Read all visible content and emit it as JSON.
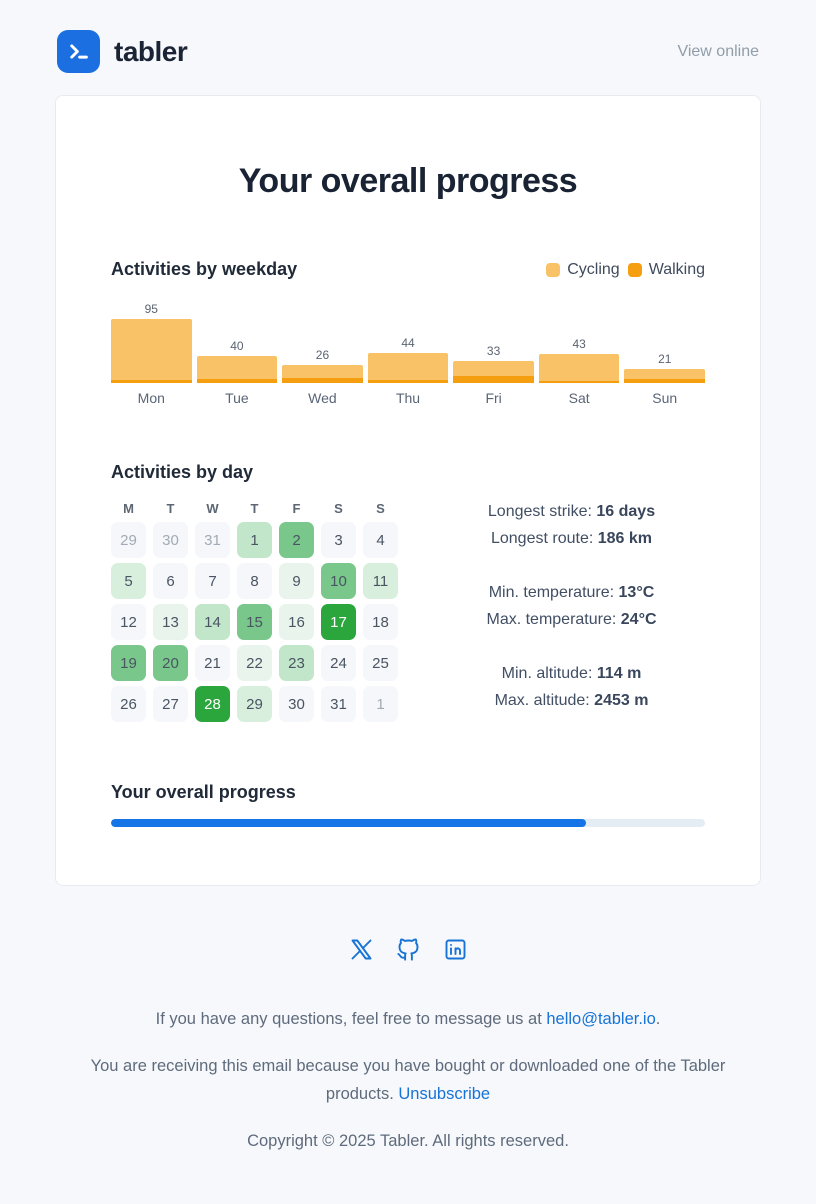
{
  "page": {
    "background": "#f6f8fb",
    "accent_blue": "#1b6fe0"
  },
  "header": {
    "brand": "tabler",
    "view_online": "View online"
  },
  "card": {
    "title": "Your overall progress"
  },
  "weekday_section": {
    "heading": "Activities by weekday",
    "legend": [
      {
        "label": "Cycling",
        "color": "#f9c266"
      },
      {
        "label": "Walking",
        "color": "#f59f10"
      }
    ]
  },
  "chart_data": {
    "type": "bar",
    "stacked": true,
    "title": "Activities by weekday",
    "xlabel": "",
    "ylabel": "",
    "categories": [
      "Mon",
      "Tue",
      "Wed",
      "Thu",
      "Fri",
      "Sat",
      "Sun"
    ],
    "totals": [
      95,
      40,
      26,
      44,
      33,
      43,
      21
    ],
    "series": [
      {
        "name": "Cycling",
        "color": "#f9c266",
        "values": [
          91,
          34,
          19,
          40,
          23,
          40,
          15
        ]
      },
      {
        "name": "Walking",
        "color": "#f59f10",
        "values": [
          4,
          6,
          7,
          4,
          10,
          3,
          6
        ]
      }
    ],
    "value_labels": true,
    "ylim": [
      0,
      95
    ],
    "grid": false,
    "legend_position": "top-right"
  },
  "day_section": {
    "heading": "Activities by day",
    "weekday_headers": [
      "M",
      "T",
      "W",
      "T",
      "F",
      "S",
      "S"
    ],
    "level_colors": [
      "#f5f7fa",
      "#e9f5ec",
      "#d9efde",
      "#c1e6c9",
      "#79c78b",
      "#2aa63d"
    ],
    "weeks": [
      [
        {
          "day": 29,
          "level": 0,
          "muted": true
        },
        {
          "day": 30,
          "level": 0,
          "muted": true
        },
        {
          "day": 31,
          "level": 0,
          "muted": true
        },
        {
          "day": 1,
          "level": 3
        },
        {
          "day": 2,
          "level": 4
        },
        {
          "day": 3,
          "level": 0
        },
        {
          "day": 4,
          "level": 0
        }
      ],
      [
        {
          "day": 5,
          "level": 2
        },
        {
          "day": 6,
          "level": 0
        },
        {
          "day": 7,
          "level": 0
        },
        {
          "day": 8,
          "level": 0
        },
        {
          "day": 9,
          "level": 1
        },
        {
          "day": 10,
          "level": 4
        },
        {
          "day": 11,
          "level": 2
        }
      ],
      [
        {
          "day": 12,
          "level": 0
        },
        {
          "day": 13,
          "level": 1
        },
        {
          "day": 14,
          "level": 3
        },
        {
          "day": 15,
          "level": 4
        },
        {
          "day": 16,
          "level": 1
        },
        {
          "day": 17,
          "level": 5
        },
        {
          "day": 18,
          "level": 0
        }
      ],
      [
        {
          "day": 19,
          "level": 4
        },
        {
          "day": 20,
          "level": 4
        },
        {
          "day": 21,
          "level": 0
        },
        {
          "day": 22,
          "level": 1
        },
        {
          "day": 23,
          "level": 3
        },
        {
          "day": 24,
          "level": 0
        },
        {
          "day": 25,
          "level": 0
        }
      ],
      [
        {
          "day": 26,
          "level": 0
        },
        {
          "day": 27,
          "level": 0
        },
        {
          "day": 28,
          "level": 5
        },
        {
          "day": 29,
          "level": 2
        },
        {
          "day": 30,
          "level": 0
        },
        {
          "day": 31,
          "level": 0
        },
        {
          "day": 1,
          "level": 0,
          "muted": true
        }
      ]
    ],
    "stats_groups": [
      [
        {
          "label": "Longest strike:",
          "value": "16 days"
        },
        {
          "label": "Longest route:",
          "value": "186 km"
        }
      ],
      [
        {
          "label": "Min. temperature:",
          "value": "13°C"
        },
        {
          "label": "Max. temperature:",
          "value": "24°C"
        }
      ],
      [
        {
          "label": "Min. altitude:",
          "value": "114 m"
        },
        {
          "label": "Max. altitude:",
          "value": "2453 m"
        }
      ]
    ]
  },
  "progress_section": {
    "heading": "Your overall progress",
    "percent": 80,
    "fill_color": "#1574e6",
    "track_color": "#e4ecf4"
  },
  "footer": {
    "socials": [
      {
        "name": "x-icon",
        "label": "X"
      },
      {
        "name": "github-icon",
        "label": "GitHub"
      },
      {
        "name": "linkedin-icon",
        "label": "LinkedIn"
      }
    ],
    "line1": {
      "text": "If you have any questions, feel free to message us at ",
      "link": "hello@tabler.io",
      "suffix": "."
    },
    "line2": {
      "text": "You are receiving this email because you have bought or downloaded one of the Tabler products. ",
      "link": "Unsubscribe"
    },
    "copyright": "Copyright © 2025 Tabler. All rights reserved."
  }
}
